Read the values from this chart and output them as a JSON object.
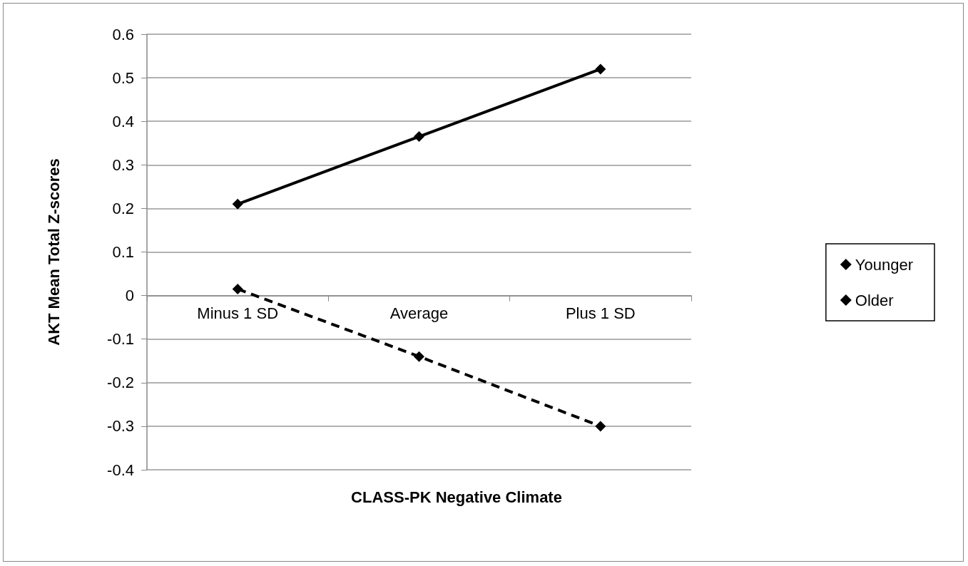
{
  "chart_data": {
    "type": "line",
    "xlabel": "CLASS-PK Negative Climate",
    "ylabel": "AKT Mean Total Z-scores",
    "categories": [
      "Minus 1 SD",
      "Average",
      "Plus 1 SD"
    ],
    "series": [
      {
        "name": "Younger",
        "color": "#000000",
        "values": [
          0.015,
          -0.14,
          -0.3
        ],
        "line_style": "dashed"
      },
      {
        "name": "Older",
        "color": "#000000",
        "values": [
          0.21,
          0.365,
          0.52
        ],
        "line_style": "solid"
      }
    ],
    "ylim": [
      -0.4,
      0.6
    ],
    "yticks": [
      -0.4,
      -0.3,
      -0.2,
      -0.1,
      0,
      0.1,
      0.2,
      0.3,
      0.4,
      0.5,
      0.6
    ],
    "grid": "y",
    "legend": "right",
    "marker": "diamond"
  }
}
